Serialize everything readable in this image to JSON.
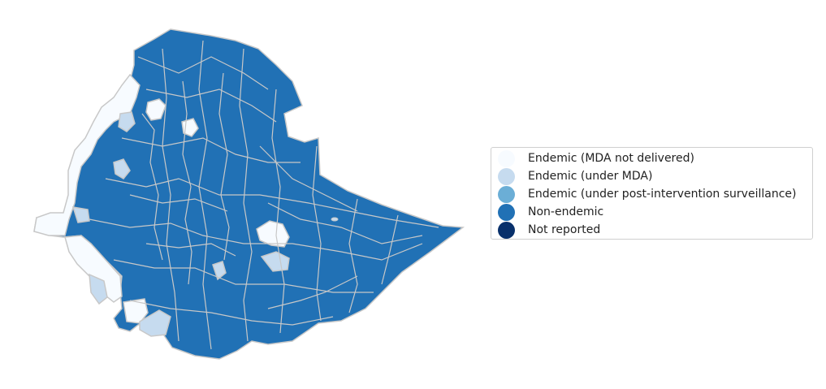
{
  "legend": {
    "items": [
      {
        "label": "Endemic (MDA not delivered)",
        "color": "#f7fbff"
      },
      {
        "label": "Endemic (under MDA)",
        "color": "#c6dbef"
      },
      {
        "label": "Endemic (under post-intervention surveillance)",
        "color": "#6baed6"
      },
      {
        "label": "Non-endemic",
        "color": "#2171b5"
      },
      {
        "label": "Not reported",
        "color": "#08306b"
      }
    ]
  },
  "map": {
    "region": "Ethiopia",
    "boundary_color": "#c8c8c8",
    "dominant_category": "Non-endemic"
  }
}
